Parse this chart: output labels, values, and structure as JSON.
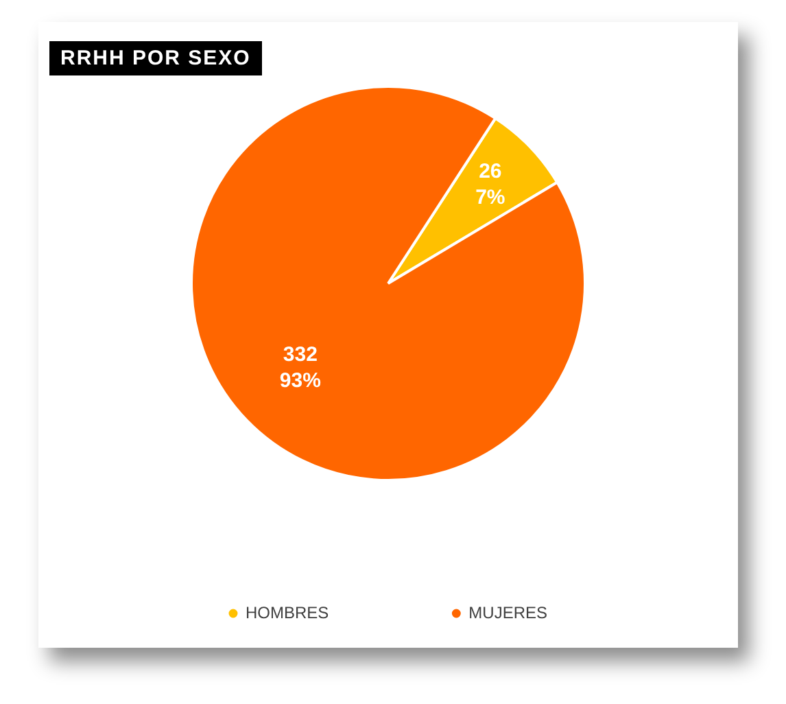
{
  "chart_data": {
    "type": "pie",
    "title": "RRHH POR SEXO",
    "categories": [
      "HOMBRES",
      "MUJERES"
    ],
    "values": [
      26,
      332
    ],
    "colors": [
      "#ffc000",
      "#ff6600"
    ],
    "value_labels": [
      "26\n7%",
      "332\n93%"
    ],
    "legend": "bottom"
  }
}
